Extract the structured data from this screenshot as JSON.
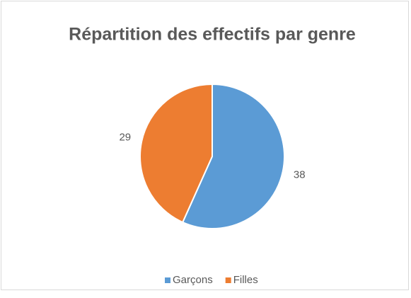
{
  "chart_data": {
    "type": "pie",
    "title": "Répartition des effectifs par genre",
    "categories": [
      "Garçons",
      "Filles"
    ],
    "values": [
      38,
      29
    ],
    "colors": [
      "#5b9bd5",
      "#ed7d31"
    ],
    "legend": "bottom"
  }
}
